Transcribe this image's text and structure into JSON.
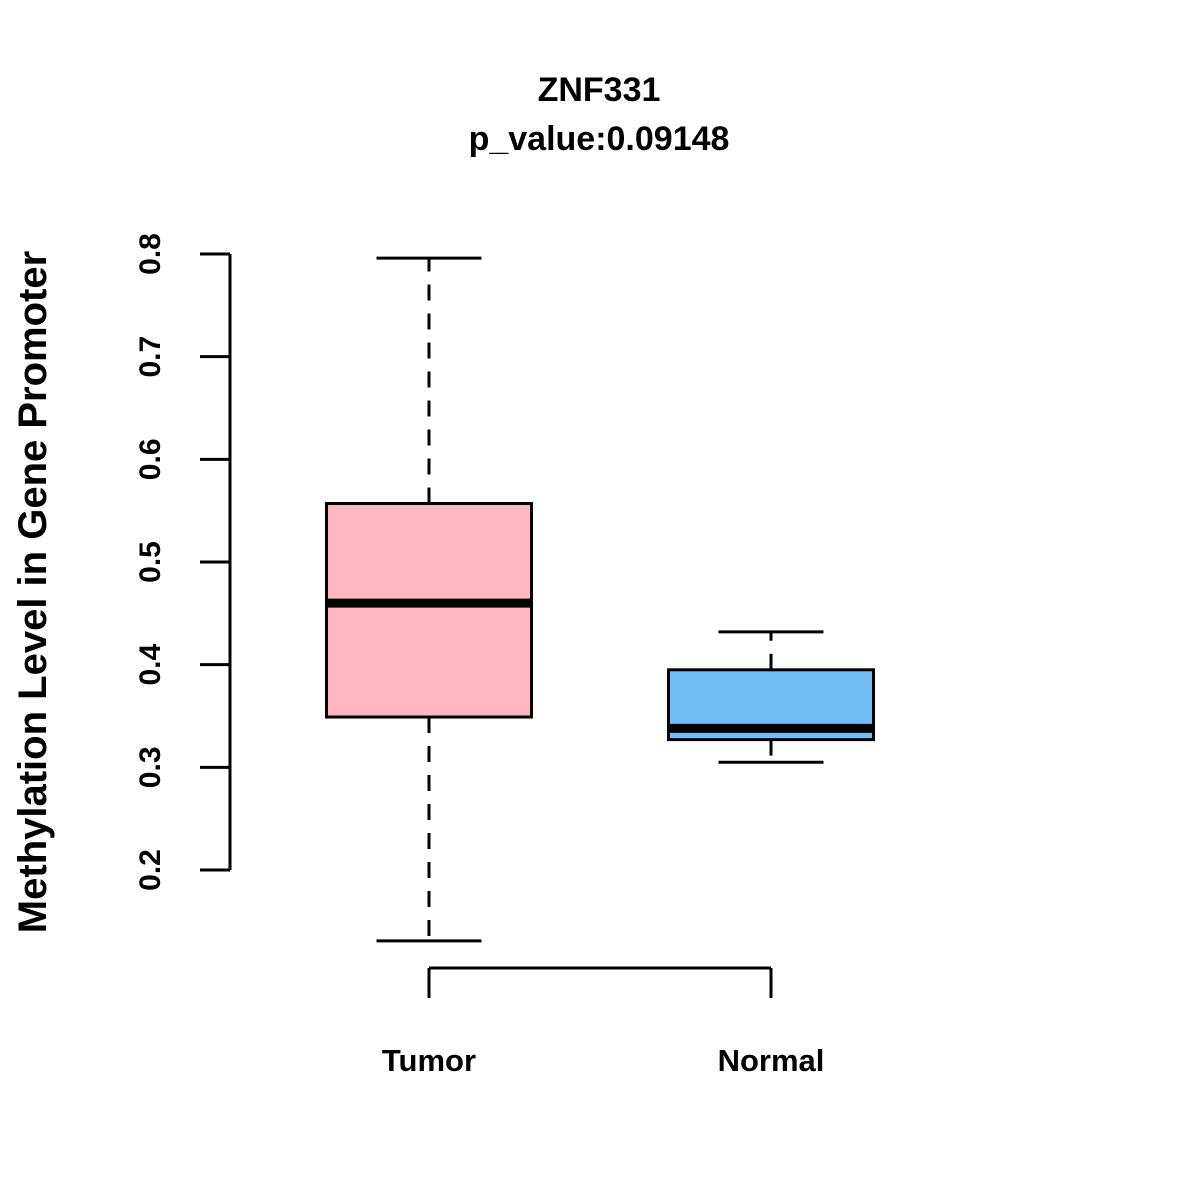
{
  "chart_data": {
    "type": "boxplot",
    "title": "ZNF331",
    "subtitle": "p_value:0.09148",
    "ylabel": "Methylation Level in Gene Promoter",
    "xlabel": "",
    "categories": [
      "Tumor",
      "Normal"
    ],
    "yticks": [
      "0.2",
      "0.3",
      "0.4",
      "0.5",
      "0.6",
      "0.7",
      "0.8"
    ],
    "axis_range": [
      0.2,
      0.8
    ],
    "grid": false,
    "legend_position": "none",
    "colors": {
      "tumor_fill": "#FFB6C1",
      "normal_fill": "#74BEF8",
      "line": "#000000",
      "background": "#FFFFFF"
    },
    "series": [
      {
        "name": "Tumor",
        "fill": "#FFB6C1",
        "lower_whisker": 0.131,
        "q1": 0.349,
        "median": 0.46,
        "q3": 0.557,
        "upper_whisker": 0.796
      },
      {
        "name": "Normal",
        "fill": "#74BEF8",
        "lower_whisker": 0.305,
        "q1": 0.327,
        "median": 0.338,
        "q3": 0.395,
        "upper_whisker": 0.432
      }
    ]
  }
}
